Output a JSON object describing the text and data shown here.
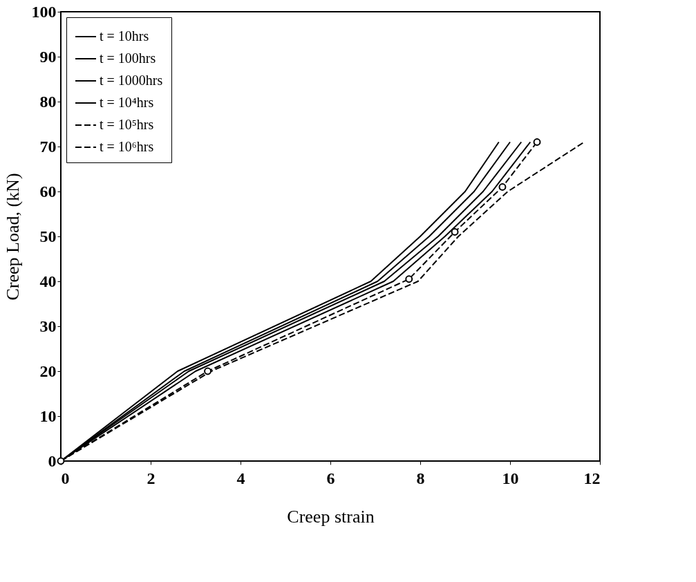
{
  "chart_data": {
    "type": "line",
    "xlabel": "Creep strain",
    "ylabel": "Creep Load, (kN)",
    "xlim": [
      0,
      12
    ],
    "xticks": [
      0,
      2,
      4,
      6,
      8,
      10,
      12
    ],
    "ylim": [
      0,
      100
    ],
    "yticks": [
      0,
      10,
      20,
      30,
      40,
      50,
      60,
      70,
      80,
      90,
      100
    ],
    "grid": false,
    "legend": "top left",
    "series": [
      {
        "name": "t = 10hrs",
        "color": "#000000",
        "line_style": "solid",
        "marker": "none",
        "x": [
          0,
          2.6,
          6.9,
          8.0,
          9.0,
          9.75
        ],
        "values": [
          0,
          20,
          40,
          50,
          60,
          71
        ]
      },
      {
        "name": "t = 100hrs",
        "color": "#000000",
        "line_style": "solid",
        "marker": "none",
        "x": [
          0,
          2.75,
          7.05,
          8.2,
          9.2,
          10.0
        ],
        "values": [
          0,
          20,
          40,
          50,
          60,
          71
        ]
      },
      {
        "name": "t = 1000hrs",
        "color": "#000000",
        "line_style": "solid",
        "marker": "none",
        "x": [
          0,
          2.85,
          7.2,
          8.4,
          9.4,
          10.25
        ],
        "values": [
          0,
          20,
          40,
          50,
          60,
          71
        ]
      },
      {
        "name": "t = 10⁴hrs",
        "color": "#000000",
        "line_style": "solid",
        "marker": "none",
        "x": [
          0,
          3.0,
          7.4,
          8.55,
          9.6,
          10.45
        ],
        "values": [
          0,
          20,
          40,
          50,
          60,
          71
        ]
      },
      {
        "name": "t = 10⁵hrs",
        "color": "#000000",
        "line_style": "dashed",
        "marker": "circle",
        "x": [
          0,
          3.27,
          7.75,
          8.77,
          9.83,
          10.6
        ],
        "values": [
          0,
          20,
          40.5,
          51,
          61,
          71
        ]
      },
      {
        "name": "t = 10⁶hrs",
        "color": "#000000",
        "line_style": "dashed",
        "marker": "none",
        "x": [
          0,
          3.35,
          7.95,
          8.85,
          9.95,
          11.65
        ],
        "values": [
          0,
          20,
          40,
          50,
          60,
          71
        ]
      }
    ]
  }
}
